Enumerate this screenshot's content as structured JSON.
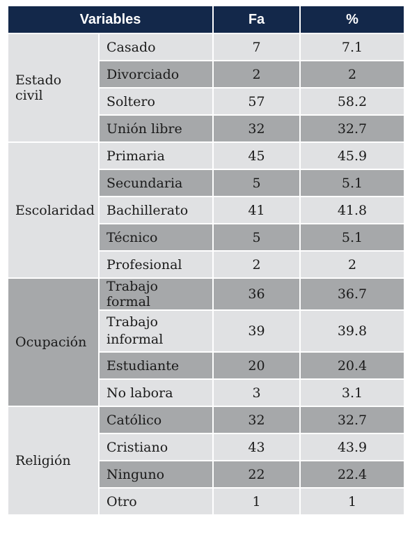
{
  "headers": [
    "Variables",
    "Fa",
    "%"
  ],
  "groups": [
    {
      "name": "Estado civil",
      "rows": [
        {
          "label": "Casado",
          "fa": "7",
          "pct": "7.1"
        },
        {
          "label": "Divorciado",
          "fa": "2",
          "pct": "2"
        },
        {
          "label": "Soltero",
          "fa": "57",
          "pct": "58.2"
        },
        {
          "label": "Unión libre",
          "fa": "32",
          "pct": "32.7"
        }
      ]
    },
    {
      "name": "Escolaridad",
      "rows": [
        {
          "label": "Primaria",
          "fa": "45",
          "pct": "45.9"
        },
        {
          "label": "Secundaria",
          "fa": "5",
          "pct": "5.1"
        },
        {
          "label": "Bachillerato",
          "fa": "41",
          "pct": "41.8"
        },
        {
          "label": "Técnico",
          "fa": "5",
          "pct": "5.1"
        },
        {
          "label": "Profesional",
          "fa": "2",
          "pct": "2"
        }
      ]
    },
    {
      "name": "Ocupación",
      "rows": [
        {
          "label": "Trabajo formal",
          "fa": "36",
          "pct": "36.7"
        },
        {
          "label": "Trabajo informal",
          "fa": "39",
          "pct": "39.8"
        },
        {
          "label": "Estudiante",
          "fa": "20",
          "pct": "20.4"
        },
        {
          "label": "No labora",
          "fa": "3",
          "pct": "3.1"
        }
      ]
    },
    {
      "name": "Religión",
      "rows": [
        {
          "label": "Católico",
          "fa": "32",
          "pct": "32.7"
        },
        {
          "label": "Cristiano",
          "fa": "43",
          "pct": "43.9"
        },
        {
          "label": "Ninguno",
          "fa": "22",
          "pct": "22.4"
        },
        {
          "label": "Otro",
          "fa": "1",
          "pct": "1"
        }
      ]
    }
  ],
  "colors": {
    "header_bg": "#13284a",
    "row_light": "#e0e1e3",
    "row_dark": "#a6a8aa"
  }
}
